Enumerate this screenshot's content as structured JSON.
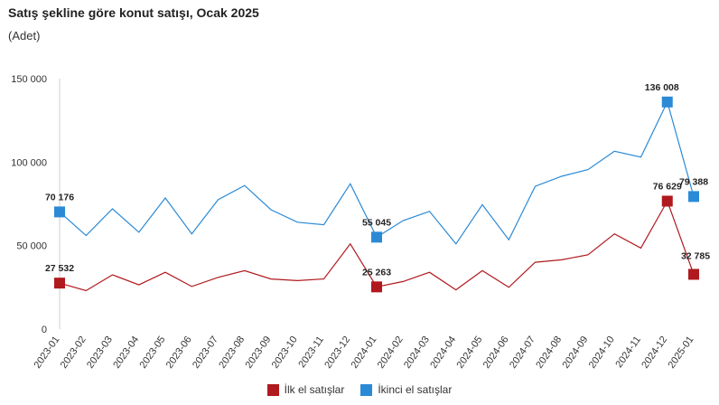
{
  "chart_data": {
    "type": "line",
    "title": "Satış şekline göre konut satışı, Ocak 2025",
    "subtitle": "(Adet)",
    "ylim": [
      0,
      150000
    ],
    "yticks": [
      0,
      50000,
      100000,
      150000
    ],
    "ytick_labels": [
      "0",
      "50 000",
      "100 000",
      "150 000"
    ],
    "grid": false,
    "legend_position": "bottom",
    "categories": [
      "2023-01",
      "2023-02",
      "2023-03",
      "2023-04",
      "2023-05",
      "2023-06",
      "2023-07",
      "2023-08",
      "2023-09",
      "2023-10",
      "2023-11",
      "2023-12",
      "2024-01",
      "2024-02",
      "2024-03",
      "2024-04",
      "2024-05",
      "2024-06",
      "2024-07",
      "2024-08",
      "2024-09",
      "2024-10",
      "2024-11",
      "2024-12",
      "2025-01"
    ],
    "series": [
      {
        "name": "İlk el satışlar",
        "color": "#b0191e",
        "values": [
          27532,
          23000,
          32500,
          26500,
          34000,
          25500,
          31000,
          35000,
          30000,
          29000,
          30000,
          51000,
          25263,
          28500,
          34000,
          23500,
          35000,
          25000,
          40000,
          41500,
          44500,
          57000,
          48500,
          76629,
          32785
        ],
        "labeled": [
          {
            "index": 0,
            "text": "27 532"
          },
          {
            "index": 12,
            "text": "25 263"
          },
          {
            "index": 23,
            "text": "76 629"
          },
          {
            "index": 24,
            "text": "32 785"
          }
        ]
      },
      {
        "name": "İkinci el satışlar",
        "color": "#2b8ad6",
        "values": [
          70176,
          56000,
          72000,
          58000,
          78500,
          57000,
          77500,
          86000,
          71500,
          64000,
          62500,
          87000,
          55045,
          65000,
          70500,
          51000,
          74500,
          53500,
          85500,
          91500,
          95500,
          106500,
          103000,
          136008,
          79388
        ],
        "labeled": [
          {
            "index": 0,
            "text": "70 176"
          },
          {
            "index": 12,
            "text": "55 045"
          },
          {
            "index": 23,
            "text": "136 008"
          },
          {
            "index": 24,
            "text": "79 388"
          }
        ]
      }
    ]
  }
}
